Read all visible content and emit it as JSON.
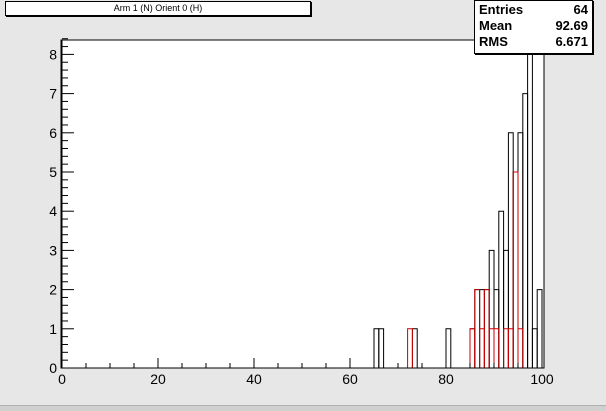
{
  "title": "Arm 1 (N) Orient 0 (H)",
  "stats": [
    {
      "key": "Entries",
      "value": "64"
    },
    {
      "key": "Mean",
      "value": "92.69"
    },
    {
      "key": "RMS",
      "value": "6.671"
    }
  ],
  "colors": {
    "background": "#e7e7e7",
    "frame": "#ffffff",
    "black_hist": "#000000",
    "red_hist": "#cc0000"
  },
  "chart_data": {
    "type": "bar",
    "style": "step-histogram",
    "xlim": [
      0,
      100
    ],
    "ylim": [
      0,
      8.5
    ],
    "bin_width": 1,
    "x_ticks": [
      0,
      20,
      40,
      60,
      80,
      100
    ],
    "y_ticks": [
      0,
      1,
      2,
      3,
      4,
      5,
      6,
      7,
      8
    ],
    "grid": false,
    "series": [
      {
        "color": "#000000",
        "bins": [
          {
            "x": 65,
            "y": 1
          },
          {
            "x": 66,
            "y": 1
          },
          {
            "x": 73,
            "y": 1
          },
          {
            "x": 80,
            "y": 1
          },
          {
            "x": 85,
            "y": 1
          },
          {
            "x": 86,
            "y": 2
          },
          {
            "x": 87,
            "y": 2
          },
          {
            "x": 88,
            "y": 2
          },
          {
            "x": 89,
            "y": 3
          },
          {
            "x": 90,
            "y": 2
          },
          {
            "x": 91,
            "y": 4
          },
          {
            "x": 92,
            "y": 3
          },
          {
            "x": 93,
            "y": 6
          },
          {
            "x": 94,
            "y": 5
          },
          {
            "x": 95,
            "y": 6
          },
          {
            "x": 96,
            "y": 7
          },
          {
            "x": 97,
            "y": 8
          },
          {
            "x": 98,
            "y": 1
          },
          {
            "x": 99,
            "y": 2
          }
        ]
      },
      {
        "color": "#cc0000",
        "bins": [
          {
            "x": 72,
            "y": 1
          },
          {
            "x": 85,
            "y": 1
          },
          {
            "x": 86,
            "y": 2
          },
          {
            "x": 87,
            "y": 1
          },
          {
            "x": 88,
            "y": 2
          },
          {
            "x": 89,
            "y": 1
          },
          {
            "x": 90,
            "y": 1
          },
          {
            "x": 92,
            "y": 1
          },
          {
            "x": 93,
            "y": 1
          },
          {
            "x": 94,
            "y": 5
          },
          {
            "x": 95,
            "y": 1
          }
        ]
      }
    ]
  }
}
